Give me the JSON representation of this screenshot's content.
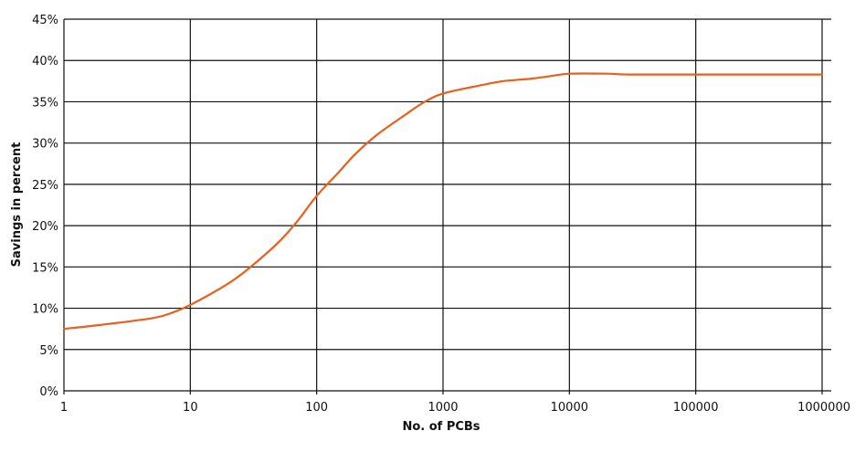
{
  "chart_data": {
    "type": "line",
    "title": "",
    "xlabel": "No. of PCBs",
    "ylabel": "Savings in percent",
    "x_scale": "log",
    "xlim": [
      1,
      1000000
    ],
    "ylim": [
      0,
      45
    ],
    "grid": true,
    "x_ticks": [
      "1",
      "10",
      "100",
      "1000",
      "10000",
      "100000",
      "1000000"
    ],
    "y_ticks": [
      "0%",
      "5%",
      "10%",
      "15%",
      "20%",
      "25%",
      "30%",
      "35%",
      "40%",
      "45%"
    ],
    "series": [
      {
        "color": "#e8601c",
        "points": [
          [
            1,
            7.5
          ],
          [
            2,
            8.0
          ],
          [
            5,
            8.8
          ],
          [
            7,
            9.4
          ],
          [
            10,
            10.4
          ],
          [
            20,
            13.0
          ],
          [
            30,
            15.0
          ],
          [
            50,
            18.0
          ],
          [
            70,
            20.5
          ],
          [
            100,
            23.6
          ],
          [
            150,
            26.5
          ],
          [
            200,
            28.6
          ],
          [
            300,
            31.0
          ],
          [
            500,
            33.4
          ],
          [
            700,
            34.9
          ],
          [
            1000,
            36.0
          ],
          [
            2000,
            37.0
          ],
          [
            3000,
            37.5
          ],
          [
            5000,
            37.8
          ],
          [
            7000,
            38.1
          ],
          [
            10000,
            38.4
          ],
          [
            20000,
            38.4
          ],
          [
            30000,
            38.3
          ],
          [
            100000,
            38.3
          ],
          [
            1000000,
            38.3
          ]
        ]
      }
    ]
  }
}
